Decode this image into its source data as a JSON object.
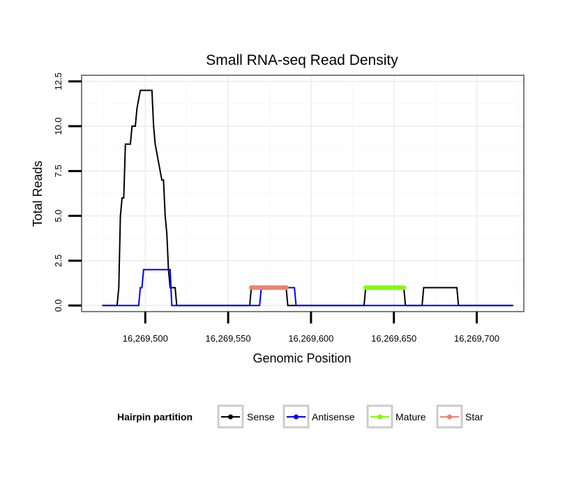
{
  "chart_data": {
    "type": "line",
    "title": "Small RNA-seq Read Density",
    "xlabel": "Genomic Position",
    "ylabel": "Total Reads",
    "xlim": [
      16269462,
      16269728
    ],
    "ylim": [
      -0.3,
      12.8
    ],
    "x_ticks": [
      16269500,
      16269550,
      16269600,
      16269650,
      16269700
    ],
    "x_tick_labels": [
      "16,269,500",
      "16,269,550",
      "16,269,600",
      "16,269,650",
      "16,269,700"
    ],
    "y_ticks": [
      0,
      2.5,
      5,
      7.5,
      10,
      12.5
    ],
    "y_tick_labels": [
      "0.0",
      "2.5",
      "5.0",
      "7.5",
      "10.0",
      "12.5"
    ],
    "grid": true,
    "legend": {
      "title": "Hairpin partition",
      "placement": "bottom",
      "entries": [
        {
          "name": "Sense",
          "color": "#000000"
        },
        {
          "name": "Antisense",
          "color": "#0000ff"
        },
        {
          "name": "Mature",
          "color": "#7fff00"
        },
        {
          "name": "Star",
          "color": "#f08070"
        }
      ]
    },
    "series": [
      {
        "name": "Sense",
        "color": "#000000",
        "style": "step-line",
        "x": [
          16269474,
          16269483,
          16269484,
          16269485,
          16269486,
          16269487,
          16269488,
          16269491,
          16269492,
          16269494,
          16269495,
          16269497,
          16269498,
          16269503,
          16269504,
          16269505,
          16269506,
          16269510,
          16269511,
          16269512,
          16269513,
          16269514,
          16269515,
          16269518,
          16269519,
          16269520,
          16269563,
          16269564,
          16269585,
          16269586,
          16269632,
          16269633,
          16269656,
          16269657,
          16269667,
          16269668,
          16269688,
          16269689,
          16269722
        ],
        "y": [
          0,
          0,
          1,
          5,
          6,
          6,
          9,
          9,
          10,
          10,
          11,
          12,
          12,
          12,
          12,
          10,
          9,
          7,
          7,
          5,
          4,
          2,
          1,
          1,
          0,
          0,
          0,
          1,
          1,
          0,
          0,
          1,
          1,
          0,
          0,
          1,
          1,
          0,
          0
        ]
      },
      {
        "name": "Antisense",
        "color": "#0000ff",
        "style": "step-line",
        "x": [
          16269474,
          16269496,
          16269497,
          16269498,
          16269499,
          16269515,
          16269516,
          16269569,
          16269570,
          16269590,
          16269591,
          16269722
        ],
        "y": [
          0,
          0,
          1,
          1,
          2,
          2,
          0,
          0,
          1,
          1,
          0,
          0
        ]
      },
      {
        "name": "Mature",
        "color": "#7fff00",
        "style": "points",
        "x_start": 16269633,
        "x_end": 16269656,
        "y": 1
      },
      {
        "name": "Star",
        "color": "#f08070",
        "style": "points",
        "x_start": 16269564,
        "x_end": 16269585,
        "y": 1
      }
    ]
  }
}
